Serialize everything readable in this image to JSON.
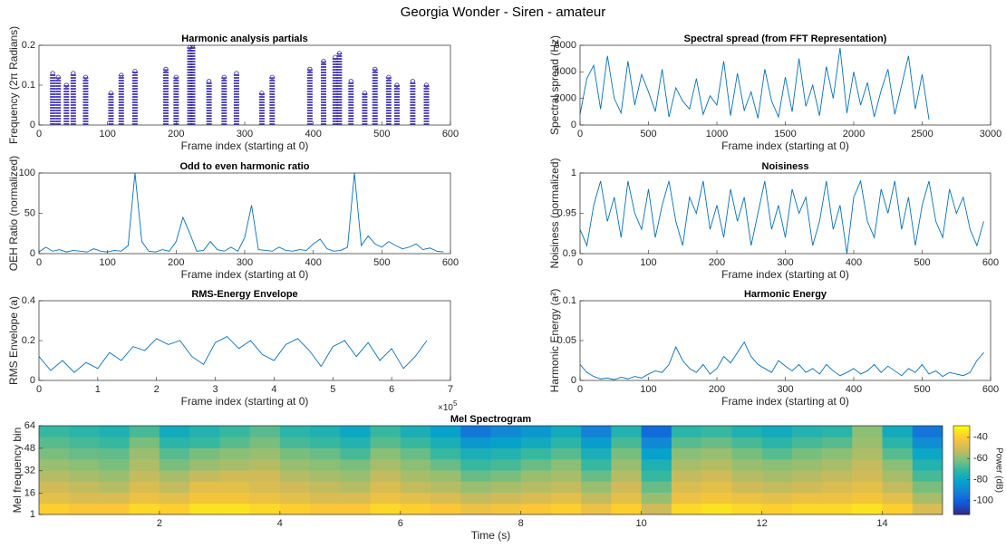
{
  "title": "Georgia Wonder - Siren - amateur",
  "chart_data": [
    {
      "type": "scatter",
      "title": "Harmonic analysis partials",
      "xlabel": "Frame index (starting at 0)",
      "ylabel": "Frequency (2π Radians)",
      "color": "#3b2cb8",
      "x": [
        20,
        28,
        40,
        50,
        68,
        105,
        120,
        140,
        185,
        200,
        220,
        224,
        248,
        270,
        288,
        325,
        340,
        395,
        415,
        432,
        438,
        455,
        475,
        490,
        510,
        522,
        545,
        565
      ],
      "values": [
        0.13,
        0.12,
        0.1,
        0.13,
        0.12,
        0.08,
        0.125,
        0.135,
        0.14,
        0.12,
        0.195,
        0.2,
        0.11,
        0.12,
        0.13,
        0.08,
        0.12,
        0.14,
        0.16,
        0.17,
        0.18,
        0.11,
        0.08,
        0.14,
        0.12,
        0.1,
        0.11,
        0.1
      ],
      "xlim": [
        0,
        600
      ],
      "ylim": [
        0,
        0.2
      ],
      "xticks": [
        0,
        100,
        200,
        300,
        400,
        500,
        600
      ],
      "yticks": [
        0,
        0.1,
        0.2
      ]
    },
    {
      "type": "line",
      "title": "Spectral spread (from FFT Representation)",
      "xlabel": "Frame index (starting at 0)",
      "ylabel": "Spectral spread (Hz)",
      "color": "#0072bd",
      "x": [
        0,
        50,
        100,
        150,
        200,
        250,
        300,
        350,
        400,
        450,
        500,
        550,
        600,
        650,
        700,
        750,
        800,
        850,
        900,
        950,
        1000,
        1050,
        1100,
        1150,
        1200,
        1250,
        1300,
        1350,
        1400,
        1450,
        1500,
        1550,
        1600,
        1650,
        1700,
        1750,
        1800,
        1850,
        1900,
        1950,
        2000,
        2050,
        2100,
        2150,
        2200,
        2250,
        2300,
        2350,
        2400,
        2450,
        2500,
        2550
      ],
      "values": [
        800,
        3500,
        4500,
        1200,
        5200,
        2000,
        900,
        4800,
        1500,
        3800,
        2500,
        1000,
        4200,
        600,
        2800,
        1800,
        1200,
        3500,
        800,
        2200,
        1500,
        4800,
        700,
        3900,
        1100,
        2500,
        500,
        4200,
        1800,
        600,
        3600,
        1000,
        5000,
        1400,
        3000,
        700,
        4400,
        2000,
        5800,
        900,
        4000,
        1500,
        3200,
        600,
        2600,
        4200,
        800,
        3000,
        5200,
        1200,
        3800,
        400
      ],
      "xlim": [
        0,
        3000
      ],
      "ylim": [
        0,
        6000
      ],
      "xticks": [
        0,
        500,
        1000,
        1500,
        2000,
        2500,
        3000
      ],
      "yticks": [
        0,
        2000,
        4000,
        6000
      ]
    },
    {
      "type": "line",
      "title": "Odd to even harmonic ratio",
      "xlabel": "Frame index (starting at 0)",
      "ylabel": "OEH Ratio (normalized)",
      "color": "#0072bd",
      "x": [
        0,
        10,
        20,
        30,
        40,
        50,
        60,
        70,
        80,
        90,
        100,
        110,
        120,
        130,
        140,
        150,
        160,
        170,
        180,
        190,
        200,
        210,
        220,
        230,
        240,
        250,
        260,
        270,
        280,
        290,
        300,
        310,
        320,
        330,
        340,
        350,
        360,
        370,
        380,
        390,
        400,
        410,
        420,
        430,
        440,
        450,
        460,
        470,
        480,
        490,
        500,
        510,
        520,
        530,
        540,
        550,
        560,
        570,
        580,
        590
      ],
      "values": [
        2,
        8,
        3,
        5,
        2,
        4,
        3,
        2,
        6,
        3,
        2,
        4,
        3,
        10,
        100,
        15,
        3,
        2,
        5,
        3,
        15,
        45,
        25,
        3,
        4,
        15,
        5,
        3,
        8,
        3,
        20,
        60,
        5,
        4,
        3,
        8,
        4,
        3,
        5,
        4,
        12,
        18,
        6,
        3,
        4,
        8,
        100,
        10,
        22,
        12,
        8,
        15,
        10,
        6,
        8,
        12,
        5,
        7,
        3,
        2
      ],
      "xlim": [
        0,
        600
      ],
      "ylim": [
        0,
        100
      ],
      "xticks": [
        0,
        100,
        200,
        300,
        400,
        500,
        600
      ],
      "yticks": [
        0,
        50,
        100
      ]
    },
    {
      "type": "line",
      "title": "Noisiness",
      "xlabel": "Frame index (starting at 0)",
      "ylabel": "Noisiness (normalized)",
      "color": "#0072bd",
      "x": [
        0,
        10,
        20,
        30,
        40,
        50,
        60,
        70,
        80,
        90,
        100,
        110,
        120,
        130,
        140,
        150,
        160,
        170,
        180,
        190,
        200,
        210,
        220,
        230,
        240,
        250,
        260,
        270,
        280,
        290,
        300,
        310,
        320,
        330,
        340,
        350,
        360,
        370,
        380,
        390,
        400,
        410,
        420,
        430,
        440,
        450,
        460,
        470,
        480,
        490,
        500,
        510,
        520,
        530,
        540,
        550,
        560,
        570,
        580,
        590
      ],
      "values": [
        0.93,
        0.91,
        0.96,
        0.99,
        0.94,
        0.97,
        0.92,
        0.99,
        0.95,
        0.93,
        0.98,
        0.92,
        0.96,
        0.99,
        0.94,
        0.91,
        0.97,
        0.95,
        0.99,
        0.93,
        0.96,
        0.92,
        0.98,
        0.94,
        0.97,
        0.91,
        0.95,
        0.99,
        0.93,
        0.96,
        0.92,
        0.98,
        0.95,
        0.97,
        0.91,
        0.94,
        0.99,
        0.93,
        0.96,
        0.9,
        0.97,
        0.99,
        0.94,
        0.92,
        0.98,
        0.95,
        0.99,
        0.93,
        0.97,
        0.91,
        0.96,
        0.99,
        0.94,
        0.92,
        0.98,
        0.95,
        0.97,
        0.93,
        0.91,
        0.94
      ],
      "xlim": [
        0,
        600
      ],
      "ylim": [
        0.9,
        1
      ],
      "xticks": [
        0,
        100,
        200,
        300,
        400,
        500,
        600
      ],
      "yticks": [
        0.9,
        0.95,
        1
      ]
    },
    {
      "type": "line",
      "title": "RMS-Energy Envelope",
      "xlabel": "Frame index (starting at 0)",
      "ylabel": "RMS Envelope (a)",
      "color": "#0072bd",
      "x": [
        0,
        20000,
        40000,
        60000,
        80000,
        100000,
        120000,
        140000,
        160000,
        180000,
        200000,
        220000,
        240000,
        260000,
        280000,
        300000,
        320000,
        340000,
        360000,
        380000,
        400000,
        420000,
        440000,
        460000,
        480000,
        500000,
        520000,
        540000,
        560000,
        580000,
        600000,
        620000,
        640000,
        660000
      ],
      "values": [
        0.12,
        0.05,
        0.1,
        0.04,
        0.09,
        0.06,
        0.14,
        0.1,
        0.17,
        0.15,
        0.21,
        0.18,
        0.2,
        0.12,
        0.08,
        0.19,
        0.22,
        0.16,
        0.2,
        0.13,
        0.1,
        0.18,
        0.21,
        0.15,
        0.07,
        0.17,
        0.2,
        0.12,
        0.19,
        0.1,
        0.16,
        0.06,
        0.12,
        0.2
      ],
      "xlim": [
        0,
        700000
      ],
      "ylim": [
        0,
        0.4
      ],
      "xticks": [
        {
          "value": 0,
          "label": "0"
        },
        {
          "value": 100000,
          "label": "1"
        },
        {
          "value": 200000,
          "label": "2"
        },
        {
          "value": 300000,
          "label": "3"
        },
        {
          "value": 400000,
          "label": "4"
        },
        {
          "value": 500000,
          "label": "5"
        },
        {
          "value": 600000,
          "label": "6"
        },
        {
          "value": 700000,
          "label": "7"
        }
      ],
      "yticks": [
        0,
        0.2,
        0.4
      ],
      "xscale_base": "×10",
      "xscale_exponent": "5"
    },
    {
      "type": "line",
      "title": "Harmonic Energy",
      "xlabel": "Frame index (starting at 0)",
      "ylabel": "Harmonic Energy (a²)",
      "color": "#0072bd",
      "x": [
        0,
        10,
        20,
        30,
        40,
        50,
        60,
        70,
        80,
        90,
        100,
        110,
        120,
        130,
        140,
        150,
        160,
        170,
        180,
        190,
        200,
        210,
        220,
        230,
        240,
        250,
        260,
        270,
        280,
        290,
        300,
        310,
        320,
        330,
        340,
        350,
        360,
        370,
        380,
        390,
        400,
        410,
        420,
        430,
        440,
        450,
        460,
        470,
        480,
        490,
        500,
        510,
        520,
        530,
        540,
        550,
        560,
        570,
        580,
        590
      ],
      "values": [
        0.02,
        0.01,
        0.005,
        0.002,
        0.003,
        0.001,
        0.004,
        0.002,
        0.005,
        0.003,
        0.008,
        0.012,
        0.01,
        0.02,
        0.042,
        0.025,
        0.015,
        0.01,
        0.02,
        0.008,
        0.015,
        0.03,
        0.022,
        0.035,
        0.048,
        0.03,
        0.02,
        0.015,
        0.01,
        0.025,
        0.018,
        0.012,
        0.02,
        0.01,
        0.015,
        0.008,
        0.02,
        0.012,
        0.006,
        0.01,
        0.015,
        0.008,
        0.012,
        0.02,
        0.01,
        0.018,
        0.012,
        0.006,
        0.015,
        0.01,
        0.02,
        0.008,
        0.012,
        0.005,
        0.01,
        0.008,
        0.006,
        0.01,
        0.025,
        0.035
      ],
      "xlim": [
        0,
        600
      ],
      "ylim": [
        0,
        0.1
      ],
      "xticks": [
        0,
        100,
        200,
        300,
        400,
        500,
        600
      ],
      "yticks": [
        0,
        0.05,
        0.1
      ]
    },
    {
      "type": "heatmap",
      "title": "Mel Spectrogram",
      "xlabel": "Time (s)",
      "ylabel": "Mel frequency bin",
      "colorbar_label": "Power (dB)",
      "xlim": [
        0,
        15
      ],
      "ylim": [
        1,
        64
      ],
      "xticks": [
        2,
        4,
        6,
        8,
        10,
        12,
        14
      ],
      "yticks": [
        1,
        16,
        32,
        48,
        64
      ],
      "clim": [
        -113,
        -29
      ],
      "cticks": [
        -100,
        -80,
        -60,
        -40
      ],
      "colormap": [
        "#352a87",
        "#0f5cdd",
        "#1481d6",
        "#06a4ca",
        "#2eb7a4",
        "#87bf77",
        "#d1bb59",
        "#fec832",
        "#f9fb0e"
      ],
      "z": [
        [
          -38,
          -40,
          -40,
          -36,
          -38,
          -34,
          -34,
          -36,
          -38,
          -40,
          -40,
          -36,
          -38,
          -40,
          -44,
          -42,
          -40,
          -38,
          -44,
          -38,
          -50,
          -36,
          -34,
          -36,
          -38,
          -36,
          -36,
          -34,
          -38,
          -48
        ],
        [
          -46,
          -48,
          -48,
          -44,
          -46,
          -42,
          -42,
          -44,
          -46,
          -48,
          -48,
          -44,
          -46,
          -48,
          -52,
          -50,
          -48,
          -46,
          -52,
          -46,
          -58,
          -44,
          -42,
          -44,
          -46,
          -44,
          -44,
          -42,
          -46,
          -56
        ],
        [
          -50,
          -52,
          -54,
          -48,
          -52,
          -46,
          -46,
          -48,
          -50,
          -52,
          -54,
          -48,
          -52,
          -54,
          -58,
          -56,
          -54,
          -52,
          -58,
          -50,
          -64,
          -48,
          -46,
          -50,
          -52,
          -50,
          -48,
          -46,
          -52,
          -62
        ],
        [
          -54,
          -56,
          -58,
          -52,
          -56,
          -52,
          -50,
          -50,
          -54,
          -56,
          -58,
          -52,
          -56,
          -58,
          -64,
          -62,
          -58,
          -56,
          -64,
          -54,
          -70,
          -52,
          -50,
          -54,
          -56,
          -54,
          -52,
          -50,
          -56,
          -68
        ],
        [
          -58,
          -60,
          -62,
          -55,
          -62,
          -58,
          -56,
          -54,
          -58,
          -60,
          -62,
          -56,
          -60,
          -64,
          -70,
          -68,
          -64,
          -60,
          -70,
          -58,
          -75,
          -56,
          -54,
          -58,
          -60,
          -58,
          -56,
          -52,
          -60,
          -74
        ],
        [
          -62,
          -64,
          -65,
          -58,
          -66,
          -62,
          -60,
          -58,
          -62,
          -64,
          -68,
          -60,
          -64,
          -70,
          -76,
          -74,
          -70,
          -66,
          -76,
          -62,
          -82,
          -60,
          -58,
          -62,
          -66,
          -62,
          -60,
          -55,
          -66,
          -80
        ],
        [
          -66,
          -68,
          -70,
          -62,
          -72,
          -70,
          -66,
          -62,
          -68,
          -70,
          -74,
          -66,
          -70,
          -76,
          -85,
          -82,
          -78,
          -72,
          -84,
          -68,
          -90,
          -66,
          -64,
          -68,
          -72,
          -68,
          -66,
          -58,
          -72,
          -88
        ],
        [
          -70,
          -72,
          -75,
          -68,
          -78,
          -74,
          -70,
          -66,
          -72,
          -75,
          -80,
          -70,
          -76,
          -82,
          -95,
          -90,
          -85,
          -78,
          -92,
          -74,
          -98,
          -72,
          -70,
          -75,
          -78,
          -74,
          -72,
          -60,
          -78,
          -95
        ]
      ]
    }
  ]
}
